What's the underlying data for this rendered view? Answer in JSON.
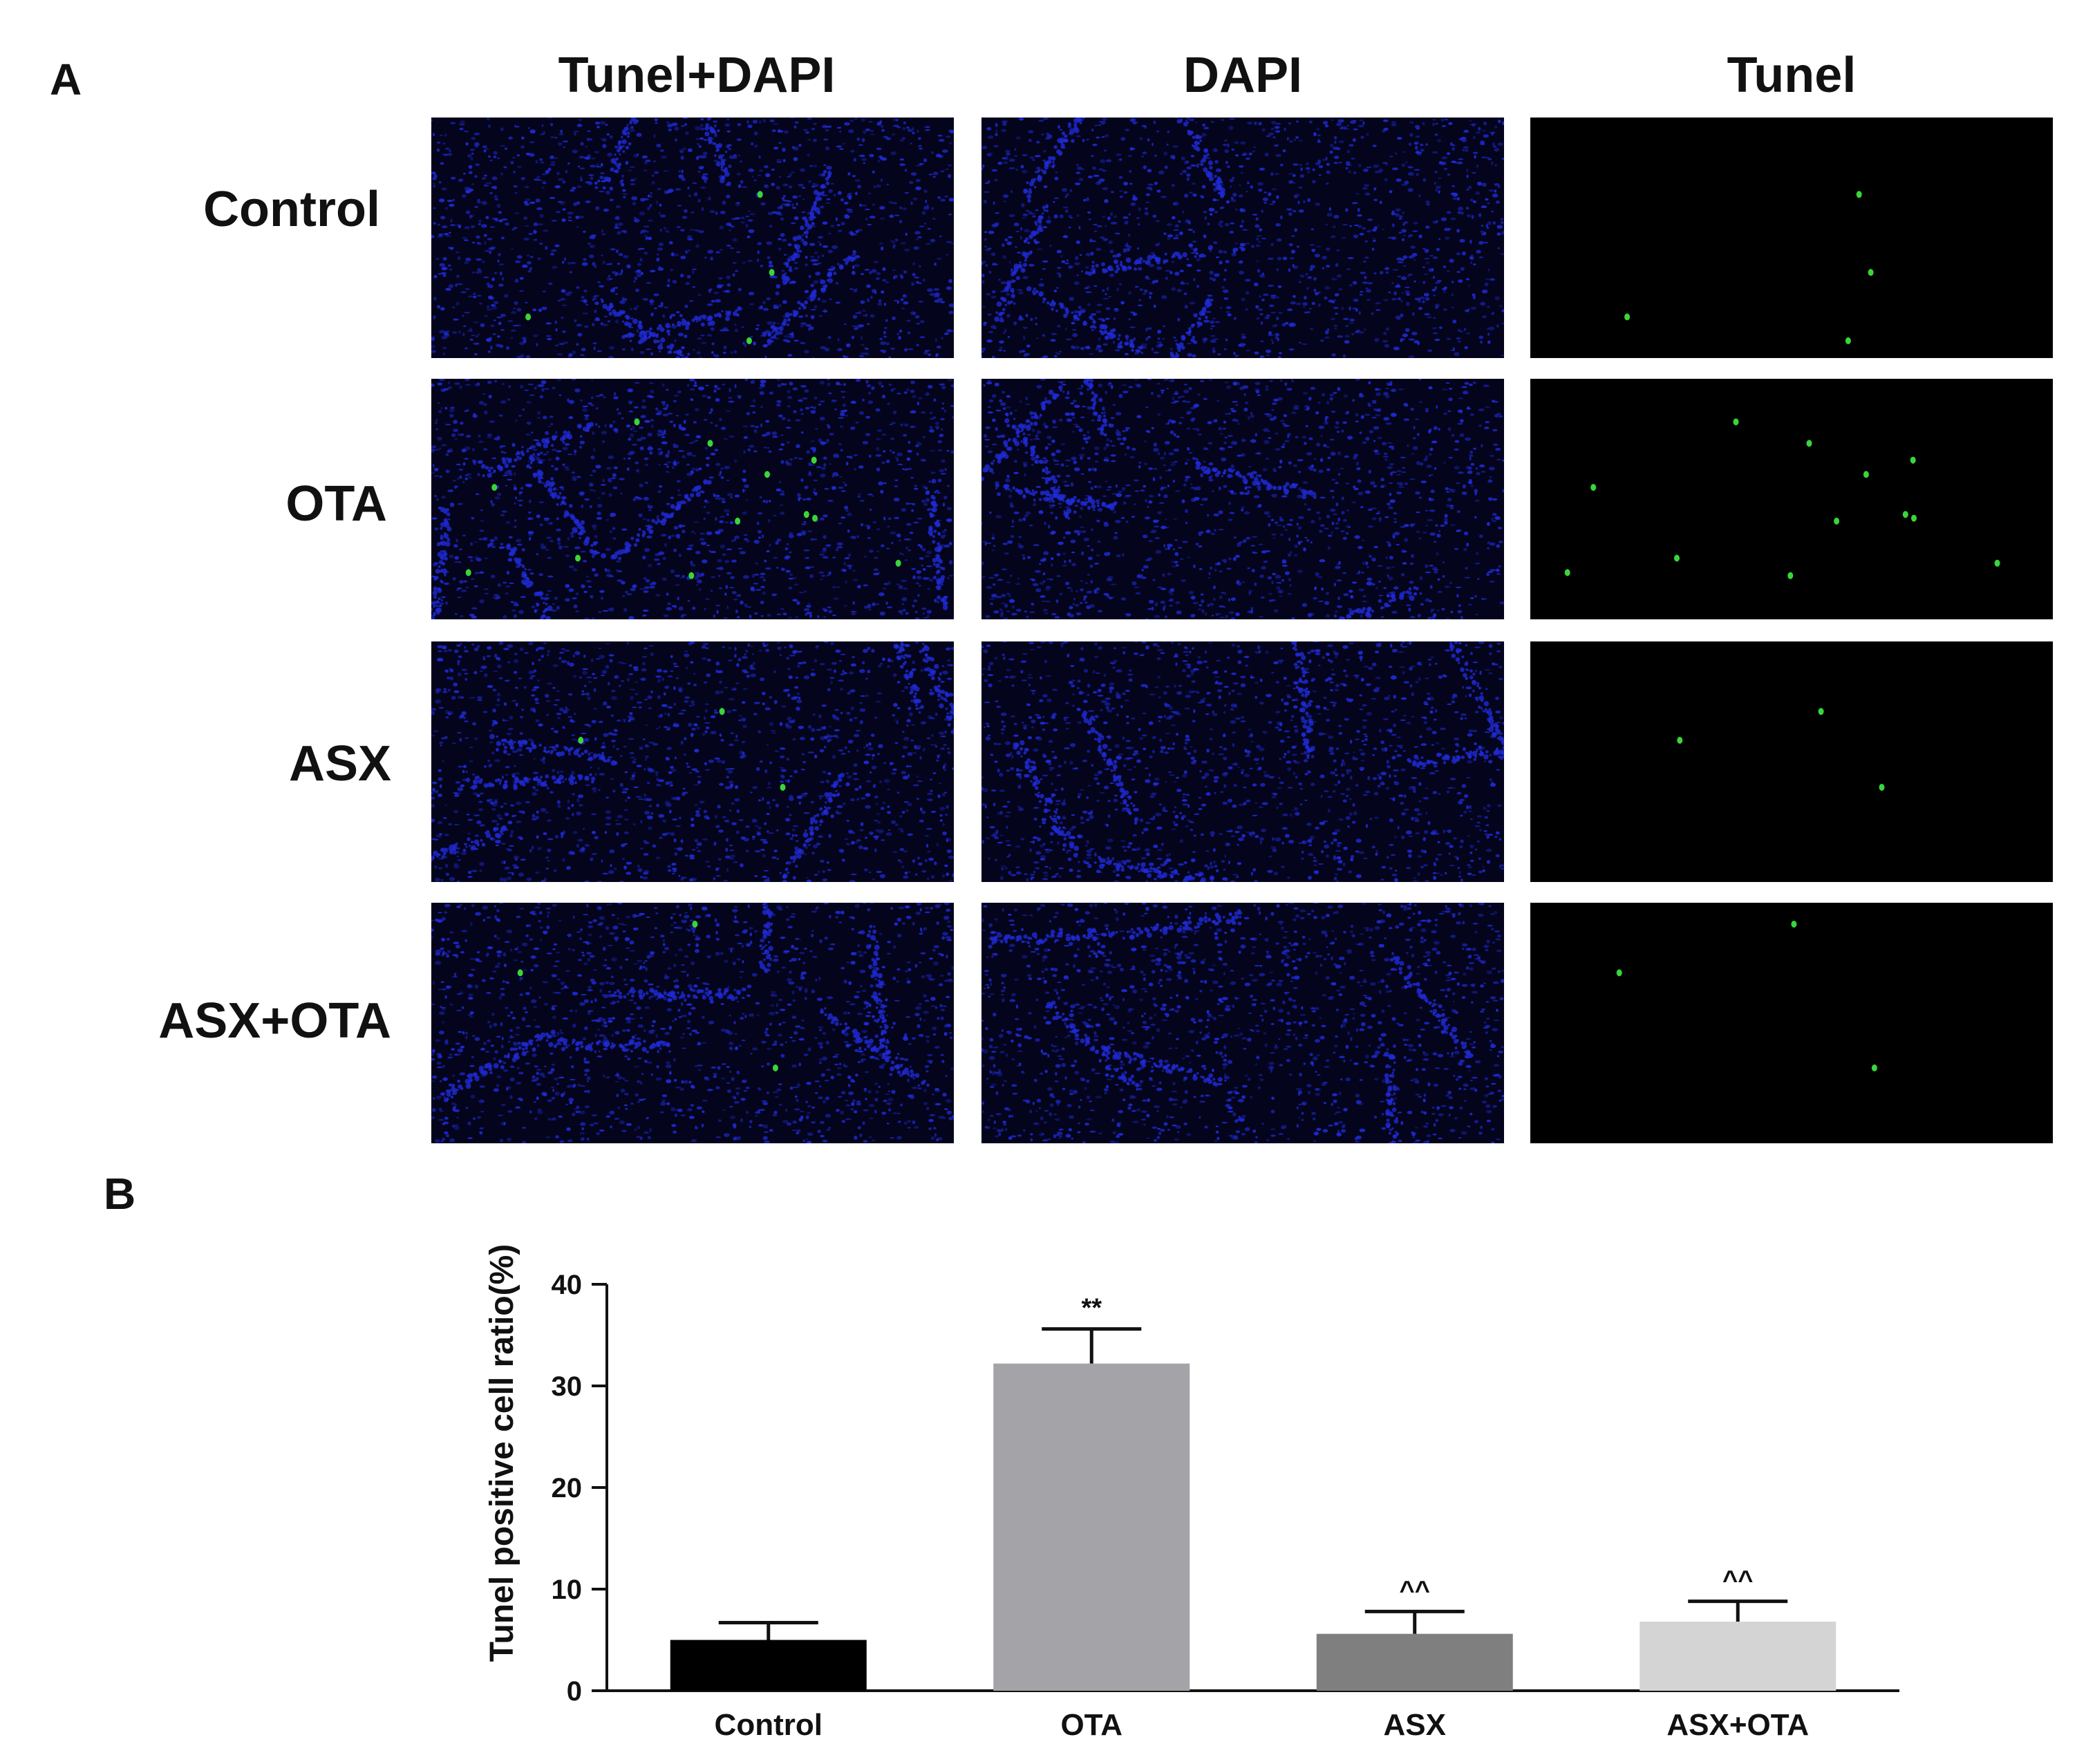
{
  "figure": {
    "panel_a_letter": "A",
    "panel_b_letter": "B",
    "columns": [
      "Tunel+DAPI",
      "DAPI",
      "Tunel"
    ],
    "rows": [
      "Control",
      "OTA",
      "ASX",
      "ASX+OTA"
    ],
    "colors": {
      "dapi_background": "#04041c",
      "dapi_stain": "#1f2bd6",
      "tunel_background": "#000000",
      "tunel_stain": "#39d639"
    },
    "tunel_positive_spots": [
      4,
      12,
      3,
      3
    ]
  },
  "chart_data": {
    "type": "bar",
    "categories": [
      "Control",
      "OTA",
      "ASX",
      "ASX+OTA"
    ],
    "values": [
      5,
      32.2,
      5.6,
      6.8
    ],
    "error": [
      1.7,
      3.4,
      2.2,
      2.0
    ],
    "annotations": [
      "",
      "**",
      "^^",
      "^^"
    ],
    "bar_colors": [
      "#000000",
      "#a4a4a8",
      "#7f7f7f",
      "#d4d4d4"
    ],
    "ylabel": "Tunel positive cell ratio(%)",
    "xlabel": "",
    "ylim": [
      0,
      40
    ],
    "yticks": [
      0,
      10,
      20,
      30,
      40
    ],
    "grid": false
  }
}
